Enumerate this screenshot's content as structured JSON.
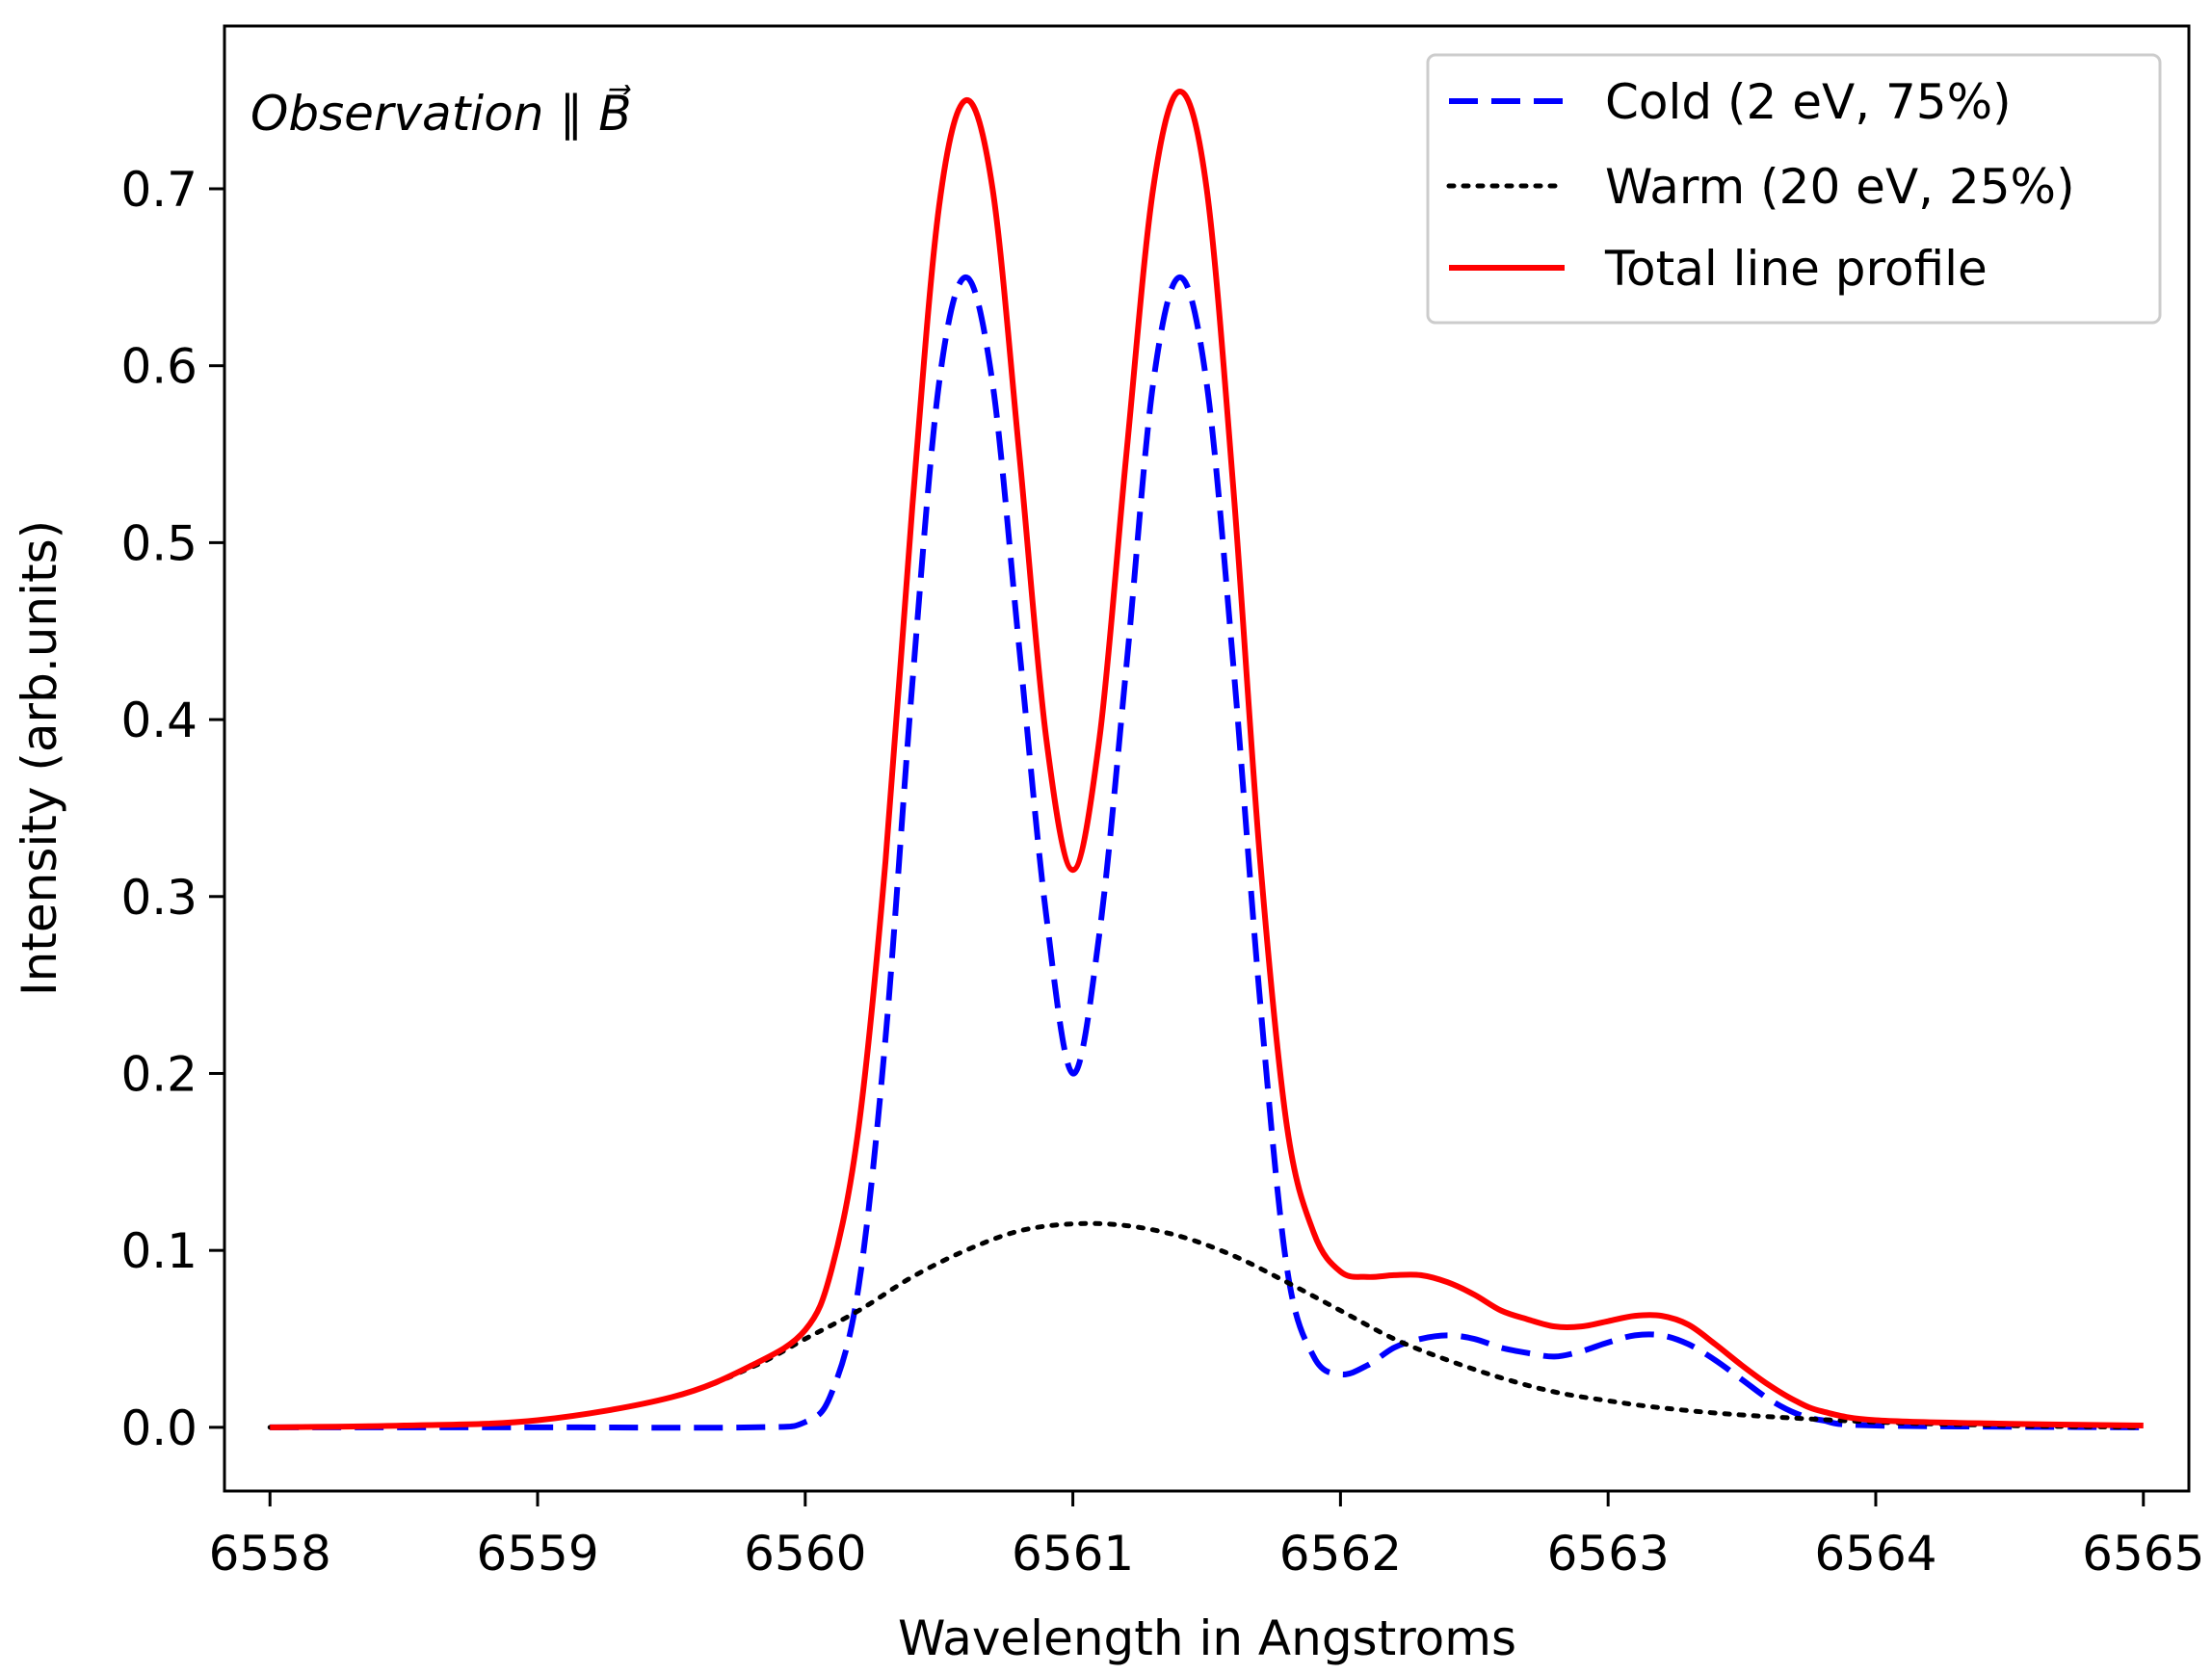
{
  "chart_data": {
    "type": "line",
    "title": "",
    "xlabel": "Wavelength in Angstroms",
    "ylabel": "Intensity (arb.units)",
    "xlim": [
      6557.83,
      6565.17
    ],
    "ylim": [
      -0.036,
      0.792
    ],
    "xticks": [
      6558,
      6559,
      6560,
      6561,
      6562,
      6563,
      6564,
      6565
    ],
    "xtick_labels": [
      "6558",
      "6559",
      "6560",
      "6561",
      "6562",
      "6563",
      "6564",
      "6565"
    ],
    "yticks": [
      0.0,
      0.1,
      0.2,
      0.3,
      0.4,
      0.5,
      0.6,
      0.7
    ],
    "ytick_labels": [
      "0.0",
      "0.1",
      "0.2",
      "0.3",
      "0.4",
      "0.5",
      "0.6",
      "0.7"
    ],
    "grid": false,
    "legend_position": "top-right",
    "annotation": "Observation ∥ B⃗",
    "series": [
      {
        "name": "Cold (2 eV, 75%)",
        "color": "#0000ff",
        "style": "dashed",
        "x": [
          6558.0,
          6559.0,
          6559.8,
          6560.0,
          6560.1,
          6560.2,
          6560.3,
          6560.4,
          6560.5,
          6560.6,
          6560.7,
          6560.8,
          6560.9,
          6561.0,
          6561.1,
          6561.2,
          6561.3,
          6561.4,
          6561.5,
          6561.6,
          6561.7,
          6561.8,
          6561.9,
          6562.0,
          6562.1,
          6562.2,
          6562.3,
          6562.4,
          6562.5,
          6562.6,
          6562.7,
          6562.8,
          6562.9,
          6563.0,
          6563.1,
          6563.2,
          6563.3,
          6563.4,
          6563.5,
          6563.6,
          6563.7,
          6563.8,
          6564.0,
          6565.0
        ],
        "y": [
          0.0,
          0.0,
          0.0,
          0.003,
          0.02,
          0.08,
          0.22,
          0.42,
          0.59,
          0.65,
          0.59,
          0.44,
          0.29,
          0.2,
          0.28,
          0.43,
          0.59,
          0.65,
          0.59,
          0.43,
          0.24,
          0.09,
          0.04,
          0.03,
          0.035,
          0.045,
          0.05,
          0.052,
          0.05,
          0.045,
          0.042,
          0.04,
          0.043,
          0.048,
          0.052,
          0.052,
          0.047,
          0.038,
          0.027,
          0.016,
          0.008,
          0.004,
          0.001,
          0.0
        ]
      },
      {
        "name": "Warm (20 eV, 25%)",
        "color": "#000000",
        "style": "dotted",
        "x": [
          6558.0,
          6558.5,
          6559.0,
          6559.5,
          6559.8,
          6560.0,
          6560.2,
          6560.4,
          6560.6,
          6560.8,
          6561.0,
          6561.2,
          6561.4,
          6561.6,
          6561.8,
          6562.0,
          6562.2,
          6562.4,
          6562.6,
          6562.8,
          6563.0,
          6563.2,
          6563.5,
          6564.0,
          6564.5,
          6565.0
        ],
        "y": [
          0.0,
          0.001,
          0.004,
          0.017,
          0.034,
          0.05,
          0.066,
          0.085,
          0.1,
          0.111,
          0.115,
          0.114,
          0.108,
          0.097,
          0.082,
          0.066,
          0.05,
          0.038,
          0.028,
          0.02,
          0.015,
          0.011,
          0.007,
          0.003,
          0.001,
          0.0
        ]
      },
      {
        "name": "Total line profile",
        "color": "#ff0000",
        "style": "solid",
        "x": [
          6558.0,
          6558.5,
          6559.0,
          6559.5,
          6559.8,
          6560.0,
          6560.1,
          6560.2,
          6560.3,
          6560.4,
          6560.5,
          6560.6,
          6560.7,
          6560.8,
          6560.9,
          6561.0,
          6561.1,
          6561.2,
          6561.3,
          6561.4,
          6561.5,
          6561.6,
          6561.7,
          6561.8,
          6561.9,
          6562.0,
          6562.1,
          6562.2,
          6562.3,
          6562.4,
          6562.5,
          6562.6,
          6562.7,
          6562.8,
          6562.9,
          6563.0,
          6563.1,
          6563.2,
          6563.3,
          6563.4,
          6563.5,
          6563.6,
          6563.7,
          6563.8,
          6564.0,
          6564.5,
          6565.0
        ],
        "y": [
          0.0,
          0.001,
          0.004,
          0.017,
          0.035,
          0.055,
          0.09,
          0.17,
          0.32,
          0.52,
          0.69,
          0.75,
          0.7,
          0.55,
          0.39,
          0.315,
          0.39,
          0.55,
          0.7,
          0.755,
          0.7,
          0.53,
          0.32,
          0.17,
          0.11,
          0.088,
          0.085,
          0.086,
          0.086,
          0.082,
          0.075,
          0.066,
          0.061,
          0.057,
          0.057,
          0.06,
          0.063,
          0.063,
          0.058,
          0.047,
          0.035,
          0.024,
          0.015,
          0.009,
          0.004,
          0.002,
          0.001
        ]
      }
    ]
  }
}
